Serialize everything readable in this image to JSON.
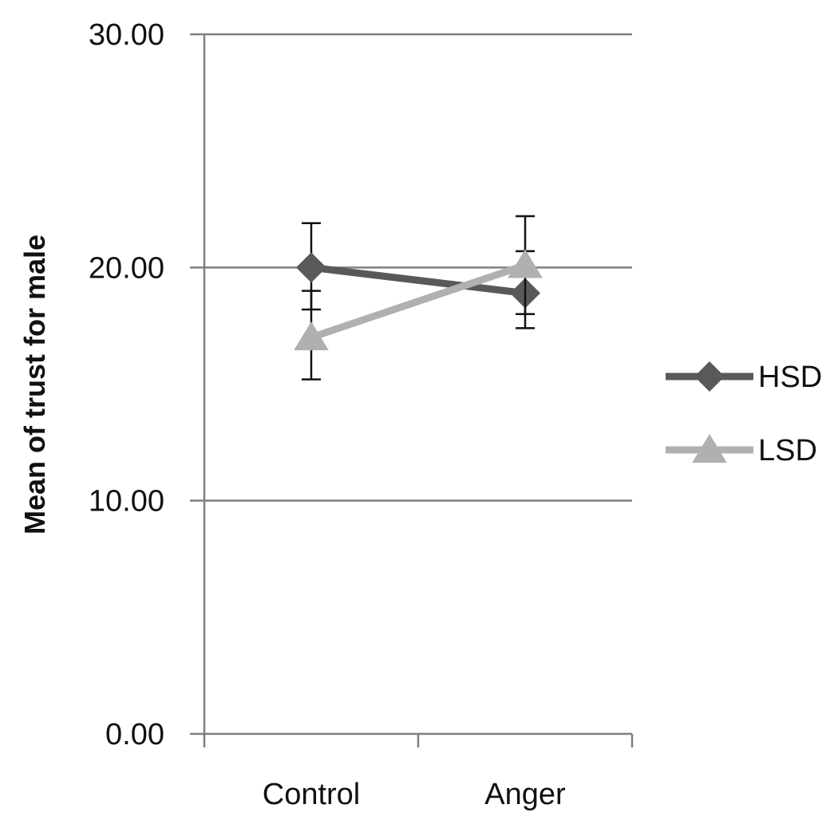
{
  "chart_data": {
    "type": "line",
    "title": "",
    "xlabel": "",
    "ylabel": "Mean of trust for male",
    "categories": [
      "Control",
      "Anger"
    ],
    "ylim": [
      0,
      30
    ],
    "yticks": [
      "0.00",
      "10.00",
      "20.00",
      "30.00"
    ],
    "grid": true,
    "legend_position": "right",
    "series": [
      {
        "name": "HSD",
        "values": [
          20.0,
          18.9
        ],
        "error_low": [
          18.2,
          17.4
        ],
        "error_high": [
          21.9,
          20.7
        ],
        "color": "#595959",
        "marker": "diamond"
      },
      {
        "name": "LSD",
        "values": [
          17.0,
          20.1
        ],
        "error_low": [
          15.2,
          18.0
        ],
        "error_high": [
          19.0,
          22.2
        ],
        "color": "#b0b0b0",
        "marker": "triangle"
      }
    ]
  }
}
